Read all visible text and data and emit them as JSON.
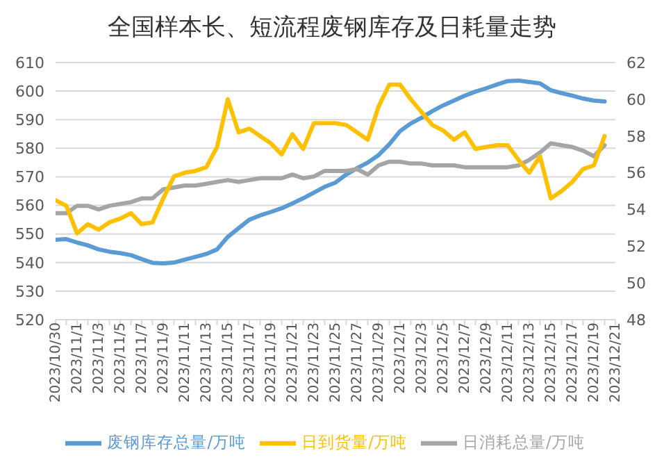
{
  "chart_data": {
    "type": "line",
    "title": "全国样本长、短流程废钢库存及日耗量走势",
    "categories": [
      "2023/10/30",
      null,
      "2023/11/1",
      null,
      "2023/11/3",
      null,
      "2023/11/5",
      null,
      "2023/11/7",
      null,
      "2023/11/9",
      null,
      "2023/11/11",
      null,
      "2023/11/13",
      null,
      "2023/11/15",
      null,
      "2023/11/17",
      null,
      "2023/11/19",
      null,
      "2023/11/21",
      null,
      "2023/11/23",
      null,
      "2023/11/25",
      null,
      "2023/11/27",
      null,
      "2023/11/29",
      null,
      "2023/12/1",
      null,
      "2023/12/3",
      null,
      "2023/12/5",
      null,
      "2023/12/7",
      null,
      "2023/12/9",
      null,
      "2023/12/11",
      null,
      "2023/12/13",
      null,
      "2023/12/15",
      null,
      "2023/12/17",
      null,
      "2023/12/19",
      null,
      "2023/12/21"
    ],
    "series": [
      {
        "name": "废钢库存总量/万吨",
        "color": "#5b9bd5",
        "axis": "y",
        "values": [
          548,
          548.2,
          547,
          546,
          544.6,
          543.8,
          543.3,
          542.6,
          541.2,
          539.9,
          539.7,
          540,
          541,
          542,
          543,
          544.6,
          549,
          552,
          555,
          556.5,
          557.7,
          559,
          560.7,
          562.5,
          564.5,
          566.5,
          568,
          570.8,
          573,
          575,
          577.6,
          581.4,
          586,
          588.7,
          590.7,
          593,
          595,
          596.7,
          598.4,
          599.8,
          601,
          602.3,
          603.5,
          603.7,
          603.2,
          602.7,
          600.3,
          599.3,
          598.4,
          597.4,
          596.7,
          596.4,
          null
        ]
      },
      {
        "name": "日消耗总量/万吨",
        "color": "#a5a5a5",
        "axis": "y2",
        "values": [
          53.8,
          53.8,
          54.2,
          54.2,
          54.0,
          54.2,
          54.3,
          54.4,
          54.6,
          54.6,
          55.1,
          55.2,
          55.3,
          55.3,
          55.4,
          55.5,
          55.6,
          55.5,
          55.6,
          55.7,
          55.7,
          55.7,
          55.9,
          55.7,
          55.8,
          56.1,
          56.1,
          56.1,
          56.2,
          55.9,
          56.4,
          56.6,
          56.6,
          56.5,
          56.5,
          56.4,
          56.4,
          56.4,
          56.3,
          56.3,
          56.3,
          56.3,
          56.3,
          56.4,
          56.7,
          57.1,
          57.6,
          57.5,
          57.4,
          57.2,
          56.9,
          57.5,
          null
        ]
      },
      {
        "name": "日到货量/万吨",
        "color": "#ffc000",
        "axis": "y2",
        "values": [
          54.5,
          54.2,
          52.7,
          53.2,
          52.9,
          53.3,
          53.5,
          53.8,
          53.2,
          53.3,
          54.6,
          55.8,
          56.0,
          56.1,
          56.3,
          57.4,
          60.0,
          58.2,
          58.4,
          58.0,
          57.6,
          57.0,
          58.1,
          57.3,
          58.7,
          58.7,
          58.7,
          58.6,
          58.2,
          57.8,
          59.6,
          60.8,
          60.8,
          60.0,
          59.3,
          58.6,
          58.3,
          57.8,
          58.2,
          57.3,
          57.4,
          57.5,
          57.5,
          56.7,
          56.0,
          56.9,
          54.6,
          55.0,
          55.5,
          56.2,
          56.4,
          58.0,
          null
        ]
      }
    ],
    "ylim": [
      520,
      610
    ],
    "yticks": [
      520,
      530,
      540,
      550,
      560,
      570,
      580,
      590,
      600,
      610
    ],
    "y2lim": [
      48,
      62
    ],
    "y2ticks": [
      48,
      50,
      52,
      54,
      56,
      58,
      60,
      62
    ],
    "grid": "y",
    "legend": "bottom",
    "marker": "none"
  }
}
